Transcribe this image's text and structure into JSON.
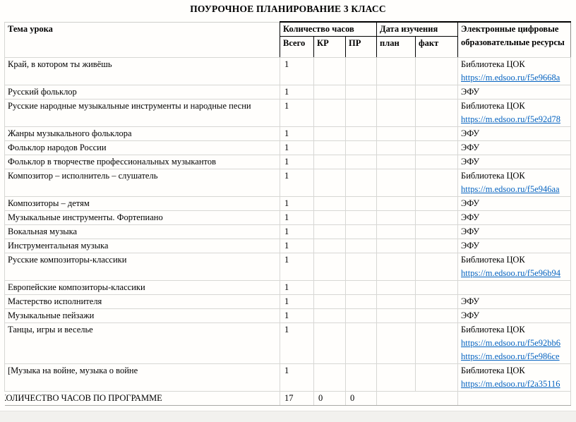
{
  "title": "ПОУРОЧНОЕ ПЛАНИРОВАНИЕ 3 КЛАСС",
  "colors": {
    "link_blue": "#0563C1",
    "header_border": "#000000",
    "grid_border": "#d7d7d4"
  },
  "table": {
    "headers": {
      "topic": "Тема урока",
      "hours_group": "Количество часов",
      "hours_total": "Всего",
      "hours_kr": "КР",
      "hours_pr": "ПР",
      "dates_group": "Дата изучения",
      "date_plan": "план",
      "date_fact": "факт",
      "resources": "Электронные цифровые образовательные ресурсы"
    },
    "rows": [
      {
        "topic": "Край, в котором ты живёшь",
        "total": "1",
        "kr": "",
        "pr": "",
        "plan": "",
        "fact": "",
        "resource_label": "Библиотека ЦОК",
        "resource_links": [
          "https://m.edsoo.ru/f5e9668a"
        ]
      },
      {
        "topic": "Русский фольклор",
        "total": "1",
        "kr": "",
        "pr": "",
        "plan": "",
        "fact": "",
        "resource_label": "ЭФУ",
        "resource_links": []
      },
      {
        "topic": "Русские народные музыкальные инструменты и народные песни",
        "total": "1",
        "kr": "",
        "pr": "",
        "plan": "",
        "fact": "",
        "resource_label": "Библиотека ЦОК",
        "resource_links": [
          "https://m.edsoo.ru/f5e92d78"
        ]
      },
      {
        "topic": "Жанры музыкального фольклора",
        "total": "1",
        "kr": "",
        "pr": "",
        "plan": "",
        "fact": "",
        "resource_label": "ЭФУ",
        "resource_links": []
      },
      {
        "topic": "Фольклор народов России",
        "total": "1",
        "kr": "",
        "pr": "",
        "plan": "",
        "fact": "",
        "resource_label": "ЭФУ",
        "resource_links": []
      },
      {
        "topic": "Фольклор в творчестве профессиональных музыкантов",
        "total": "1",
        "kr": "",
        "pr": "",
        "plan": "",
        "fact": "",
        "resource_label": "ЭФУ",
        "resource_links": []
      },
      {
        "topic": "Композитор – исполнитель – слушатель",
        "total": "1",
        "kr": "",
        "pr": "",
        "plan": "",
        "fact": "",
        "resource_label": "Библиотека ЦОК",
        "resource_links": [
          "https://m.edsoo.ru/f5e946aa"
        ]
      },
      {
        "topic": "Композиторы – детям",
        "total": "1",
        "kr": "",
        "pr": "",
        "plan": "",
        "fact": "",
        "resource_label": "ЭФУ",
        "resource_links": []
      },
      {
        "topic": "Музыкальные инструменты. Фортепиано",
        "total": "1",
        "kr": "",
        "pr": "",
        "plan": "",
        "fact": "",
        "resource_label": "ЭФУ",
        "resource_links": []
      },
      {
        "topic": "Вокальная музыка",
        "total": "1",
        "kr": "",
        "pr": "",
        "plan": "",
        "fact": "",
        "resource_label": "ЭФУ",
        "resource_links": []
      },
      {
        "topic": "Инструментальная музыка",
        "total": "1",
        "kr": "",
        "pr": "",
        "plan": "",
        "fact": "",
        "resource_label": "ЭФУ",
        "resource_links": []
      },
      {
        "topic": "Русские композиторы-классики",
        "total": "1",
        "kr": "",
        "pr": "",
        "plan": "",
        "fact": "",
        "resource_label": "Библиотека ЦОК",
        "resource_links": [
          "https://m.edsoo.ru/f5e96b94"
        ]
      },
      {
        "topic": "Европейские композиторы-классики",
        "total": "1",
        "kr": "",
        "pr": "",
        "plan": "",
        "fact": "",
        "resource_label": "",
        "resource_links": []
      },
      {
        "topic": "Мастерство исполнителя",
        "total": "1",
        "kr": "",
        "pr": "",
        "plan": "",
        "fact": "",
        "resource_label": "ЭФУ",
        "resource_links": []
      },
      {
        "topic": "Музыкальные пейзажи",
        "total": "1",
        "kr": "",
        "pr": "",
        "plan": "",
        "fact": "",
        "resource_label": "ЭФУ",
        "resource_links": []
      },
      {
        "topic": "Танцы, игры и веселье",
        "total": "1",
        "kr": "",
        "pr": "",
        "plan": "",
        "fact": "",
        "resource_label": "Библиотека ЦОК",
        "resource_links": [
          "https://m.edsoo.ru/f5e92bb6",
          "https://m.edsoo.ru/f5e986ce"
        ]
      },
      {
        "topic": "[Музыка на войне, музыка о войне",
        "total": "1",
        "kr": "",
        "pr": "",
        "plan": "",
        "fact": "",
        "resource_label": "Библиотека ЦОК",
        "resource_links": [
          "https://m.edsoo.ru/f2a35116"
        ]
      }
    ],
    "total_row": {
      "topic": "КОЛИЧЕСТВО ЧАСОВ ПО ПРОГРАММЕ",
      "total": "17",
      "kr": "0",
      "pr": "0"
    }
  }
}
